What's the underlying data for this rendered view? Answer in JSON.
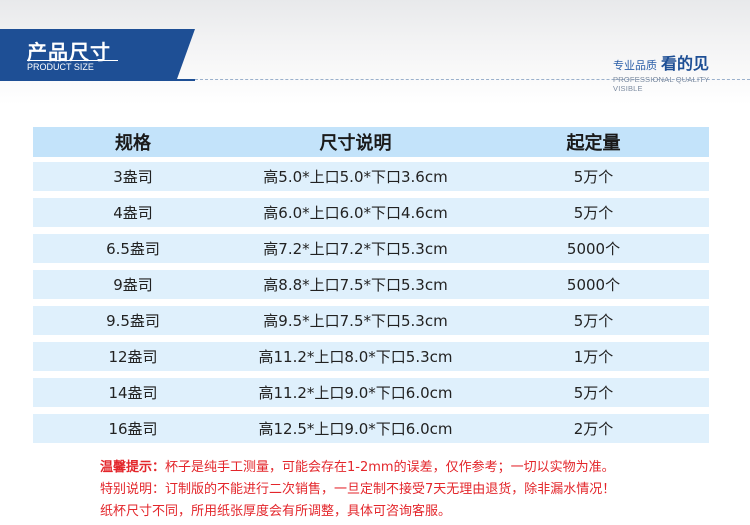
{
  "header": {
    "title_cn": "产品尺寸",
    "title_en": "PRODUCT SIZE",
    "quality_small": "专业品质",
    "quality_big": "看的见",
    "quality_en": "PROFESSIONAL QUALITY VISIBLE"
  },
  "table": {
    "headers": [
      "规格",
      "尺寸说明",
      "起定量"
    ],
    "rows": [
      [
        "3盎司",
        "高5.0*上口5.0*下口3.6cm",
        "5万个"
      ],
      [
        "4盎司",
        "高6.0*上口6.0*下口4.6cm",
        "5万个"
      ],
      [
        "6.5盎司",
        "高7.2*上口7.2*下口5.3cm",
        "5000个"
      ],
      [
        "9盎司",
        "高8.8*上口7.5*下口5.3cm",
        "5000个"
      ],
      [
        "9.5盎司",
        "高9.5*上口7.5*下口5.3cm",
        "5万个"
      ],
      [
        "12盎司",
        "高11.2*上口8.0*下口5.3cm",
        "1万个"
      ],
      [
        "14盎司",
        "高11.2*上口9.0*下口6.0cm",
        "5万个"
      ],
      [
        "16盎司",
        "高12.5*上口9.0*下口6.0cm",
        "2万个"
      ]
    ]
  },
  "notes": {
    "tip_label": "温馨提示：",
    "tip_text": "杯子是纯手工测量，可能会存在1-2mm的误差，仅作参考；一切以实物为准。",
    "special": "特别说明：订制版的不能进行二次销售，一旦定制不接受7天无理由退货，除非漏水情况！",
    "size": "纸杯尺寸不同，所用纸张厚度会有所调整，具体可咨询客服。"
  },
  "colors": {
    "brand_blue": "#1e4f95",
    "header_row": "#c3e3fa",
    "data_row": "#dff0fc",
    "note_red": "#e3262b"
  }
}
